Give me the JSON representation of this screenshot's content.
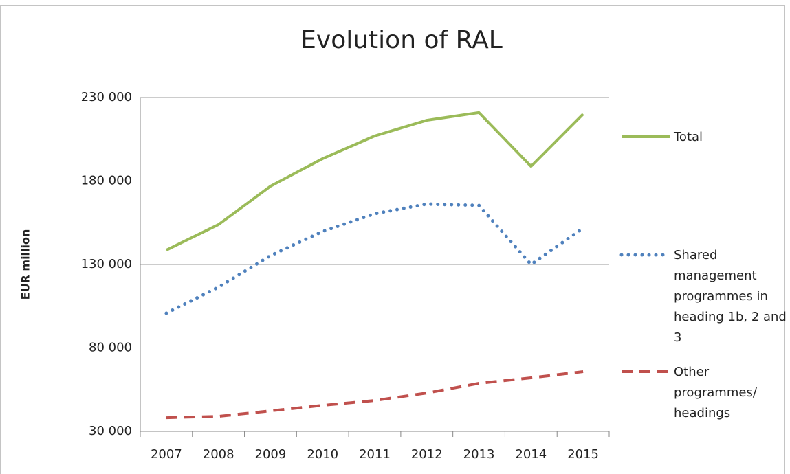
{
  "chart_data": {
    "type": "line",
    "title": "Evolution of RAL",
    "y_label": "EUR million",
    "categories": [
      "2007",
      "2008",
      "2009",
      "2010",
      "2011",
      "2012",
      "2013",
      "2014",
      "2015"
    ],
    "series": [
      {
        "name": "Total",
        "color": "#9bbb59",
        "dash": "solid",
        "values": [
          138600,
          153900,
          176900,
          193400,
          207000,
          216400,
          221000,
          188800,
          220100
        ]
      },
      {
        "name": "Shared management programmes in heading 1b, 2 and 3",
        "color": "#4f81bd",
        "dash": "dotted",
        "values": [
          100800,
          116400,
          135300,
          149800,
          160400,
          166200,
          165400,
          130000,
          151800
        ]
      },
      {
        "name": "Other programmes/ headings",
        "color": "#c0504d",
        "dash": "dashed",
        "values": [
          38200,
          39000,
          42300,
          45600,
          48500,
          53000,
          58800,
          62100,
          65800
        ]
      }
    ],
    "ylim": [
      30000,
      230000
    ],
    "yticks": [
      {
        "value": 30000,
        "label": "30 000"
      },
      {
        "value": 80000,
        "label": "80 000"
      },
      {
        "value": 130000,
        "label": "130 000"
      },
      {
        "value": 180000,
        "label": "180 000"
      },
      {
        "value": 230000,
        "label": "230 000"
      }
    ],
    "grid": true
  }
}
